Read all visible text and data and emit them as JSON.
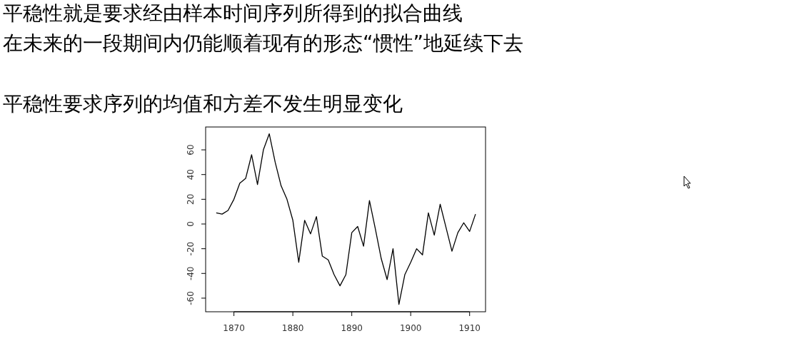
{
  "chart_data": {
    "type": "line",
    "title": "平稳性就是要求经由样本时间序列所得到的拟合曲线",
    "subtitle": "在未来的一段期间内仍能顺着现有的形态“惯性”地延续下去",
    "annotations": [
      "平稳性要求序列的均值和方差不发生明显变化"
    ],
    "x": [
      1867,
      1868,
      1869,
      1870,
      1871,
      1872,
      1873,
      1874,
      1875,
      1876,
      1877,
      1878,
      1879,
      1880,
      1881,
      1882,
      1883,
      1884,
      1885,
      1886,
      1887,
      1888,
      1889,
      1890,
      1891,
      1892,
      1893,
      1894,
      1895,
      1896,
      1897,
      1898,
      1899,
      1900,
      1901,
      1902,
      1903,
      1904,
      1905,
      1906,
      1907,
      1908,
      1909,
      1910,
      1911
    ],
    "series": [
      {
        "color": "#000000",
        "values": [
          9,
          8,
          11,
          20,
          33,
          37,
          56,
          32,
          60,
          73,
          50,
          31,
          20,
          3,
          -31,
          3,
          -8,
          6,
          -26,
          -29,
          -41,
          -50,
          -41,
          -7,
          -2,
          -18,
          19,
          -4,
          -28,
          -45,
          -20,
          -65,
          -41,
          -31,
          -20,
          -25,
          9,
          -9,
          16,
          -3,
          -22,
          -7,
          1,
          -6,
          8
        ]
      }
    ],
    "xlim": [
      1865.2,
      1912.7
    ],
    "ylim": [
      -71,
      78.5
    ],
    "xticks": [
      1870,
      1880,
      1890,
      1900,
      1910
    ],
    "yticks": [
      -60,
      -40,
      -20,
      0,
      20,
      40,
      60
    ],
    "grid": false
  }
}
